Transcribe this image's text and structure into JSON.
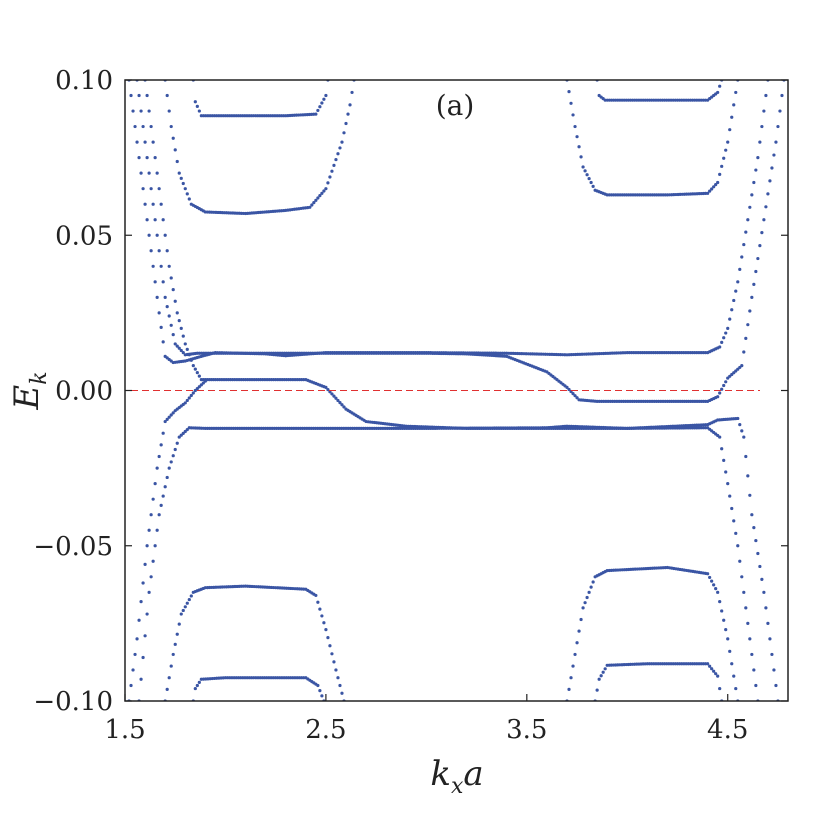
{
  "chart_data": {
    "type": "scatter",
    "panel_label": "(a)",
    "xlabel": "k_x a",
    "ylabel": "E_k",
    "xlim": [
      1.5,
      4.8
    ],
    "ylim": [
      -0.1,
      0.1
    ],
    "x_ticks": [
      1.5,
      2.5,
      3.5,
      4.5
    ],
    "x_tick_labels": [
      "1.5",
      "2.5",
      "3.5",
      "4.5"
    ],
    "y_ticks": [
      -0.1,
      -0.05,
      0.0,
      0.05,
      0.1
    ],
    "y_tick_labels": [
      "−0.10",
      "−0.05",
      "0.00",
      "0.05",
      "0.10"
    ],
    "grid": false,
    "legend": "none",
    "reference_line": {
      "y": 0.0,
      "style": "dashed",
      "color": "#e03030"
    },
    "series_color": "#3a55a4",
    "series": [
      {
        "points": [
          [
            1.84,
            0.1
          ],
          [
            1.85,
            0.093
          ],
          [
            1.88,
            0.0885
          ],
          [
            2.0,
            0.0885
          ],
          [
            2.3,
            0.0885
          ],
          [
            2.45,
            0.089
          ],
          [
            2.5,
            0.095
          ],
          [
            2.51,
            0.1
          ]
        ]
      },
      {
        "points": [
          [
            1.7,
            0.1
          ],
          [
            1.73,
            0.085
          ],
          [
            1.77,
            0.07
          ],
          [
            1.83,
            0.06
          ],
          [
            1.9,
            0.0575
          ],
          [
            2.1,
            0.057
          ],
          [
            2.3,
            0.058
          ],
          [
            2.42,
            0.059
          ],
          [
            2.5,
            0.065
          ],
          [
            2.58,
            0.08
          ],
          [
            2.62,
            0.092
          ],
          [
            2.64,
            0.1
          ]
        ]
      },
      {
        "points": [
          [
            1.52,
            0.1
          ],
          [
            1.56,
            0.08
          ],
          [
            1.6,
            0.06
          ],
          [
            1.64,
            0.04
          ],
          [
            1.67,
            0.025
          ],
          [
            1.7,
            0.011
          ],
          [
            1.74,
            0.009
          ],
          [
            1.8,
            0.0095
          ],
          [
            1.88,
            0.011
          ],
          [
            1.95,
            0.0122
          ],
          [
            2.2,
            0.0118
          ],
          [
            2.3,
            0.0112
          ],
          [
            2.5,
            0.0122
          ],
          [
            3.0,
            0.0122
          ],
          [
            3.4,
            0.012
          ],
          [
            3.7,
            0.0115
          ],
          [
            4.0,
            0.0122
          ],
          [
            4.4,
            0.0122
          ],
          [
            4.46,
            0.014
          ],
          [
            4.5,
            0.02
          ],
          [
            4.55,
            0.035
          ],
          [
            4.6,
            0.055
          ],
          [
            4.65,
            0.075
          ],
          [
            4.7,
            0.1
          ]
        ]
      },
      {
        "points": [
          [
            1.56,
            0.1
          ],
          [
            1.61,
            0.075
          ],
          [
            1.66,
            0.05
          ],
          [
            1.7,
            0.03
          ],
          [
            1.75,
            0.015
          ],
          [
            1.8,
            0.0115
          ],
          [
            1.86,
            0.012
          ],
          [
            2.0,
            0.012
          ],
          [
            2.5,
            0.012
          ],
          [
            3.0,
            0.012
          ],
          [
            3.2,
            0.0118
          ],
          [
            3.4,
            0.011
          ],
          [
            3.6,
            0.006
          ],
          [
            3.7,
            0.001
          ],
          [
            3.76,
            -0.003
          ],
          [
            3.85,
            -0.0035
          ],
          [
            4.2,
            -0.0035
          ],
          [
            4.4,
            -0.0035
          ],
          [
            4.45,
            -0.002
          ],
          [
            4.5,
            0.004
          ],
          [
            4.57,
            0.008
          ],
          [
            4.62,
            0.03
          ],
          [
            4.68,
            0.055
          ],
          [
            4.74,
            0.08
          ],
          [
            4.78,
            0.1
          ]
        ]
      },
      {
        "points": [
          [
            1.6,
            0.1
          ],
          [
            1.64,
            0.08
          ],
          [
            1.68,
            0.06
          ],
          [
            1.72,
            0.04
          ],
          [
            1.76,
            0.025
          ],
          [
            1.8,
            0.015
          ],
          [
            1.84,
            0.008
          ],
          [
            1.88,
            0.0035
          ],
          [
            1.95,
            0.0035
          ],
          [
            2.1,
            0.0035
          ],
          [
            2.4,
            0.0035
          ],
          [
            2.5,
            0.001
          ],
          [
            2.6,
            -0.006
          ],
          [
            2.7,
            -0.01
          ],
          [
            2.9,
            -0.0115
          ],
          [
            3.2,
            -0.0122
          ],
          [
            3.6,
            -0.0122
          ],
          [
            4.0,
            -0.0122
          ],
          [
            4.4,
            -0.011
          ],
          [
            4.45,
            -0.0095
          ],
          [
            4.55,
            -0.009
          ],
          [
            4.58,
            -0.015
          ],
          [
            4.62,
            -0.04
          ],
          [
            4.68,
            -0.065
          ],
          [
            4.75,
            -0.1
          ]
        ]
      },
      {
        "points": [
          [
            1.52,
            -0.1
          ],
          [
            1.56,
            -0.08
          ],
          [
            1.61,
            -0.05
          ],
          [
            1.66,
            -0.025
          ],
          [
            1.7,
            -0.01
          ],
          [
            1.75,
            -0.0065
          ],
          [
            1.8,
            -0.004
          ],
          [
            1.85,
            0.0
          ],
          [
            1.9,
            0.003
          ]
        ]
      },
      {
        "points": [
          [
            1.57,
            -0.1
          ],
          [
            1.62,
            -0.065
          ],
          [
            1.67,
            -0.04
          ],
          [
            1.72,
            -0.025
          ],
          [
            1.77,
            -0.015
          ],
          [
            1.82,
            -0.012
          ],
          [
            1.9,
            -0.0122
          ],
          [
            2.2,
            -0.0122
          ],
          [
            2.6,
            -0.0122
          ],
          [
            3.0,
            -0.0122
          ],
          [
            3.6,
            -0.012
          ],
          [
            3.7,
            -0.0115
          ],
          [
            4.0,
            -0.0122
          ],
          [
            4.4,
            -0.012
          ],
          [
            4.46,
            -0.015
          ],
          [
            4.5,
            -0.03
          ],
          [
            4.55,
            -0.05
          ],
          [
            4.6,
            -0.075
          ],
          [
            4.65,
            -0.1
          ]
        ]
      },
      {
        "points": [
          [
            1.7,
            -0.1
          ],
          [
            1.74,
            -0.085
          ],
          [
            1.78,
            -0.072
          ],
          [
            1.84,
            -0.065
          ],
          [
            1.9,
            -0.0635
          ],
          [
            2.1,
            -0.063
          ],
          [
            2.4,
            -0.064
          ],
          [
            2.45,
            -0.066
          ],
          [
            2.5,
            -0.077
          ],
          [
            2.55,
            -0.09
          ],
          [
            2.59,
            -0.1
          ]
        ]
      },
      {
        "points": [
          [
            1.84,
            -0.1
          ],
          [
            1.85,
            -0.096
          ],
          [
            1.88,
            -0.093
          ],
          [
            2.0,
            -0.0925
          ],
          [
            2.4,
            -0.0925
          ],
          [
            2.46,
            -0.095
          ],
          [
            2.49,
            -0.1
          ]
        ]
      },
      {
        "points": [
          [
            3.7,
            -0.1
          ],
          [
            3.74,
            -0.085
          ],
          [
            3.78,
            -0.07
          ],
          [
            3.84,
            -0.06
          ],
          [
            3.9,
            -0.058
          ],
          [
            4.2,
            -0.057
          ],
          [
            4.4,
            -0.059
          ],
          [
            4.45,
            -0.065
          ],
          [
            4.5,
            -0.08
          ],
          [
            4.55,
            -0.1
          ]
        ]
      },
      {
        "points": [
          [
            3.84,
            -0.1
          ],
          [
            3.86,
            -0.093
          ],
          [
            3.9,
            -0.0885
          ],
          [
            4.1,
            -0.088
          ],
          [
            4.4,
            -0.088
          ],
          [
            4.45,
            -0.092
          ],
          [
            4.47,
            -0.1
          ]
        ]
      },
      {
        "points": [
          [
            3.85,
            0.1
          ],
          [
            3.86,
            0.095
          ],
          [
            3.89,
            0.0935
          ],
          [
            4.1,
            0.0935
          ],
          [
            4.4,
            0.0935
          ],
          [
            4.45,
            0.096
          ],
          [
            4.47,
            0.1
          ]
        ]
      },
      {
        "points": [
          [
            3.7,
            0.1
          ],
          [
            3.74,
            0.085
          ],
          [
            3.78,
            0.072
          ],
          [
            3.84,
            0.0645
          ],
          [
            3.9,
            0.063
          ],
          [
            4.2,
            0.063
          ],
          [
            4.4,
            0.0635
          ],
          [
            4.45,
            0.067
          ],
          [
            4.5,
            0.08
          ],
          [
            4.55,
            0.1
          ]
        ]
      }
    ]
  }
}
